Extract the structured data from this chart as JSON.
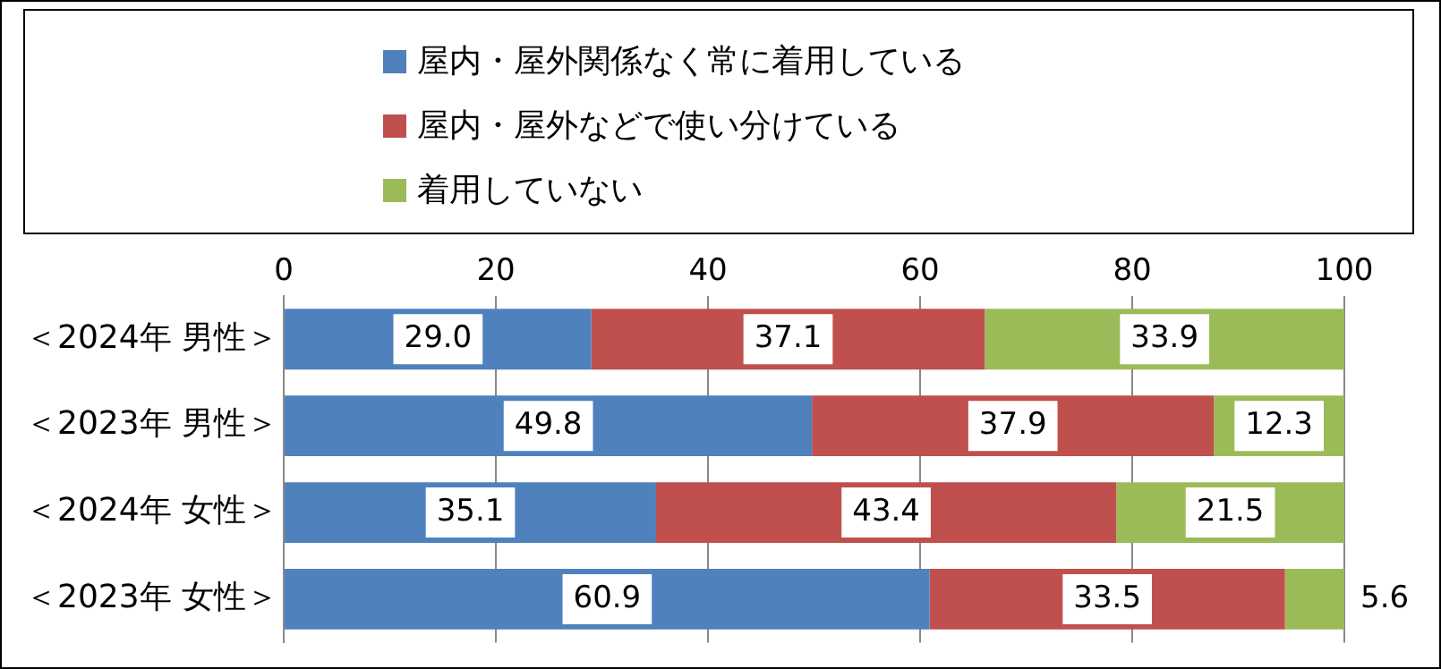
{
  "chart_data": {
    "type": "bar",
    "orientation": "horizontal",
    "stacked": true,
    "categories": [
      "＜2024年 男性＞",
      "＜2023年 男性＞",
      "＜2024年 女性＞",
      "＜2023年 女性＞"
    ],
    "series": [
      {
        "name": "屋内・屋外関係なく常に着用している",
        "color": "#4f81bd",
        "values": [
          29.0,
          49.8,
          35.1,
          60.9
        ],
        "value_labels": [
          "29.0",
          "49.8",
          "35.1",
          "60.9"
        ]
      },
      {
        "name": "屋内・屋外などで使い分けている",
        "color": "#c0504d",
        "values": [
          37.1,
          37.9,
          43.4,
          33.5
        ],
        "value_labels": [
          "37.1",
          "37.9",
          "43.4",
          "33.5"
        ]
      },
      {
        "name": "着用していない",
        "color": "#9bbb59",
        "values": [
          33.9,
          12.3,
          21.5,
          5.6
        ],
        "value_labels": [
          "33.9",
          "12.3",
          "21.5",
          "5.6"
        ]
      }
    ],
    "xlim": [
      0,
      100
    ],
    "xticks": [
      0,
      20,
      40,
      60,
      80,
      100
    ],
    "grid": "x",
    "legend": "top"
  }
}
